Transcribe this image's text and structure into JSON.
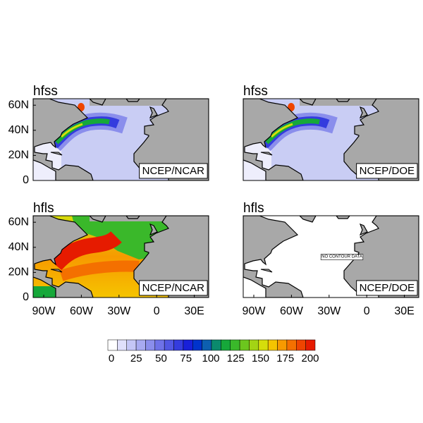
{
  "panels": [
    {
      "title": "hfss",
      "label": "NCEP/NCAR"
    },
    {
      "title": "hfss",
      "label": "NCEP/DOE"
    },
    {
      "title": "hfls",
      "label": "NCEP/NCAR"
    },
    {
      "title": "hfls",
      "label": "NCEP/DOE",
      "note": "NO CONTOUR DATA"
    }
  ],
  "lat_ticks": [
    "0",
    "20N",
    "40N",
    "60N"
  ],
  "lon_ticks": [
    "90W",
    "60W",
    "30W",
    "0",
    "30E"
  ],
  "colorbar": {
    "labels": [
      "0",
      "25",
      "50",
      "75",
      "100",
      "125",
      "150",
      "175",
      "200"
    ],
    "colors": [
      "#ffffff",
      "#e0e0fb",
      "#c4c6f6",
      "#a7aaf1",
      "#8a8eec",
      "#6e72e8",
      "#5157e3",
      "#343cde",
      "#1820d9",
      "#0033cc",
      "#0d5fb0",
      "#0b8a6d",
      "#16a83a",
      "#3ab82a",
      "#6cc61e",
      "#a3d414",
      "#d6dd0b",
      "#f5c400",
      "#f79a00",
      "#f47000",
      "#ef4400",
      "#e61b00"
    ]
  }
}
